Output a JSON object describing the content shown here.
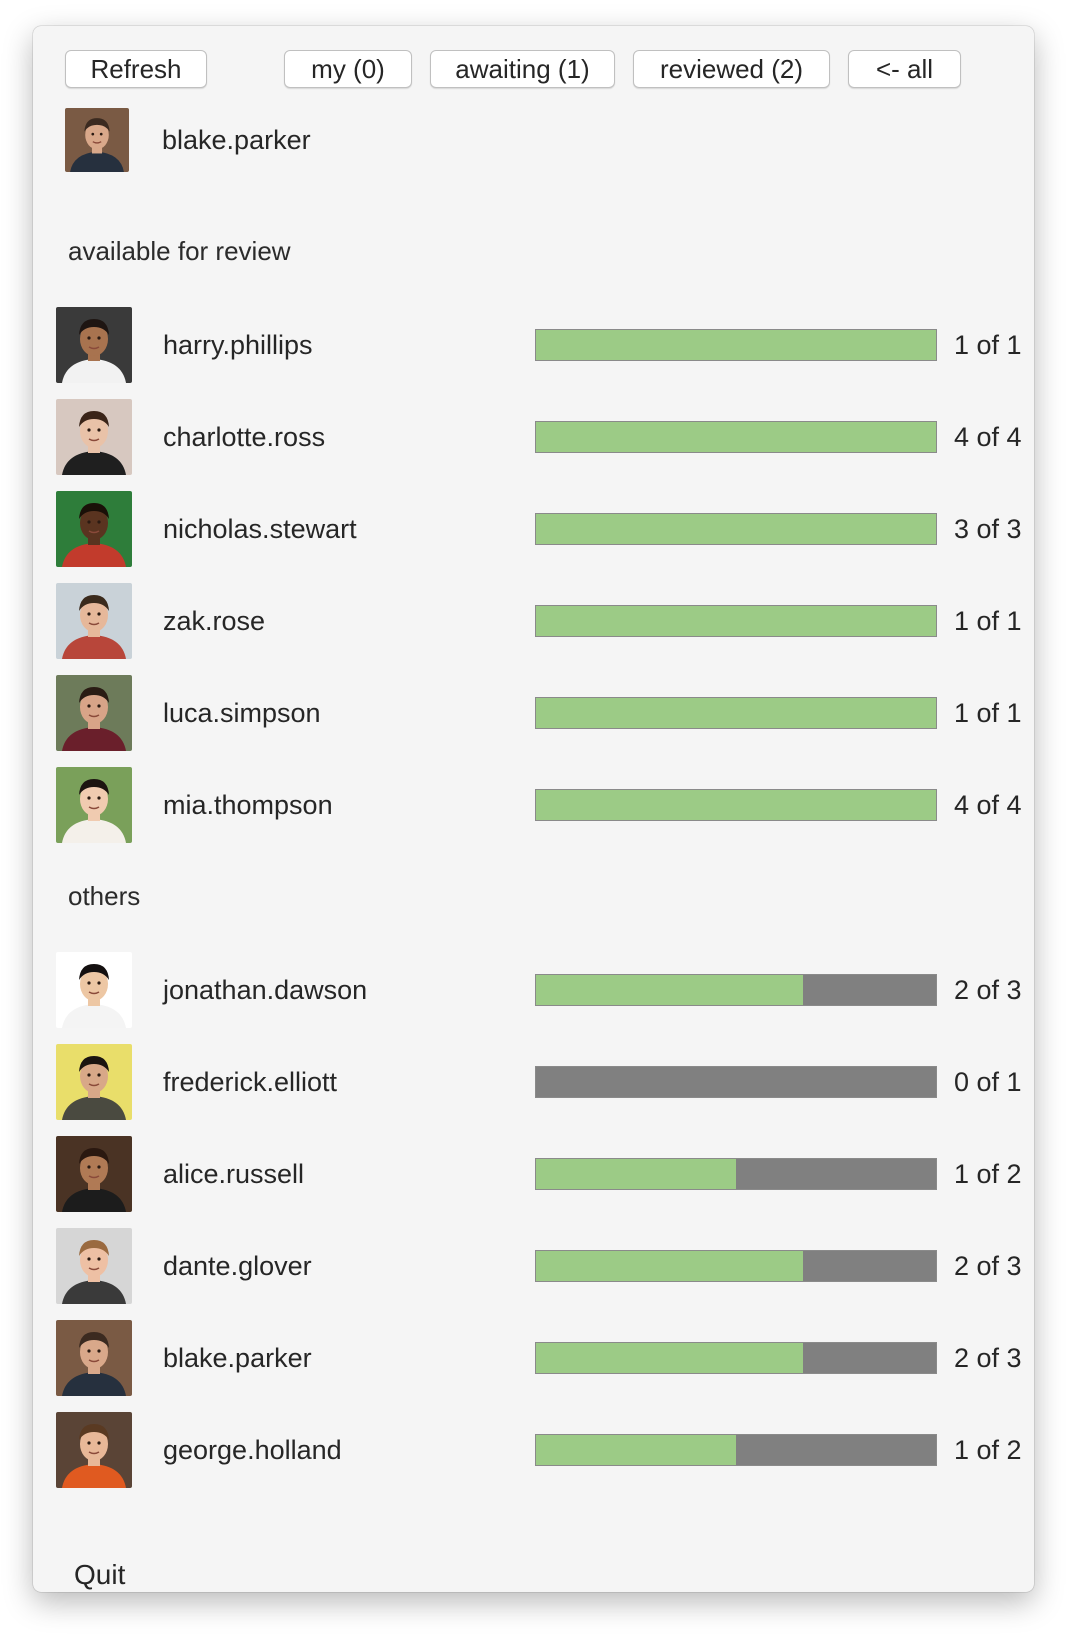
{
  "toolbar": {
    "refresh_label": "Refresh",
    "my_label": "my (0)",
    "awaiting_label": "awaiting (1)",
    "reviewed_label": "reviewed (2)",
    "all_label": "<- all"
  },
  "current_user": {
    "name": "blake.parker"
  },
  "sections": {
    "available_title": "available for review",
    "others_title": "others"
  },
  "available": [
    {
      "name": "harry.phillips",
      "count": "1 of 1",
      "progress": 1.0
    },
    {
      "name": "charlotte.ross",
      "count": "4 of 4",
      "progress": 1.0
    },
    {
      "name": "nicholas.stewart",
      "count": "3 of 3",
      "progress": 1.0
    },
    {
      "name": "zak.rose",
      "count": "1 of 1",
      "progress": 1.0
    },
    {
      "name": "luca.simpson",
      "count": "1 of 1",
      "progress": 1.0
    },
    {
      "name": "mia.thompson",
      "count": "4 of 4",
      "progress": 1.0
    }
  ],
  "others": [
    {
      "name": "jonathan.dawson",
      "count": "2 of 3",
      "progress": 0.667
    },
    {
      "name": "frederick.elliott",
      "count": "0 of 1",
      "progress": 0.0
    },
    {
      "name": "alice.russell",
      "count": "1 of 2",
      "progress": 0.5
    },
    {
      "name": "dante.glover",
      "count": "2 of 3",
      "progress": 0.667
    },
    {
      "name": "blake.parker",
      "count": "2 of 3",
      "progress": 0.667
    },
    {
      "name": "george.holland",
      "count": "1 of 2",
      "progress": 0.5
    }
  ],
  "footer": {
    "quit_label": "Quit"
  },
  "colors": {
    "progress_fill": "#9ccb86",
    "progress_track": "#808080"
  }
}
